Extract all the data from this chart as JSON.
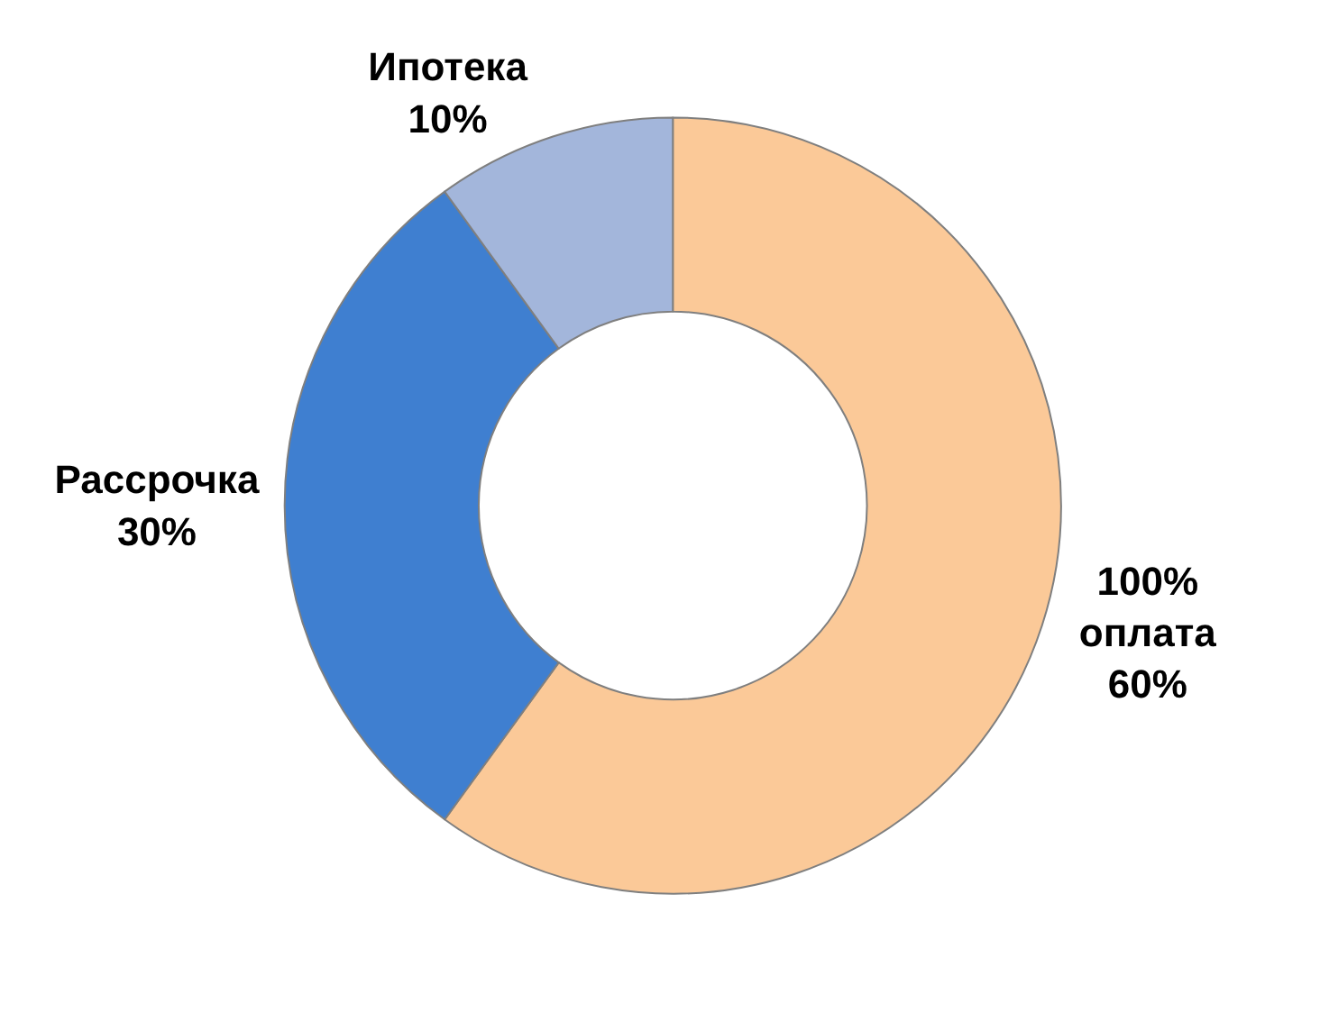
{
  "chart_data": {
    "type": "donut",
    "categories": [
      "100% оплата",
      "Рассрочка",
      "Ипотека"
    ],
    "values": [
      60,
      30,
      10
    ],
    "value_labels": [
      "60%",
      "30%",
      "10%"
    ],
    "colors": [
      "#fbc998",
      "#3f7fd0",
      "#a3b6db"
    ],
    "legend": false
  }
}
